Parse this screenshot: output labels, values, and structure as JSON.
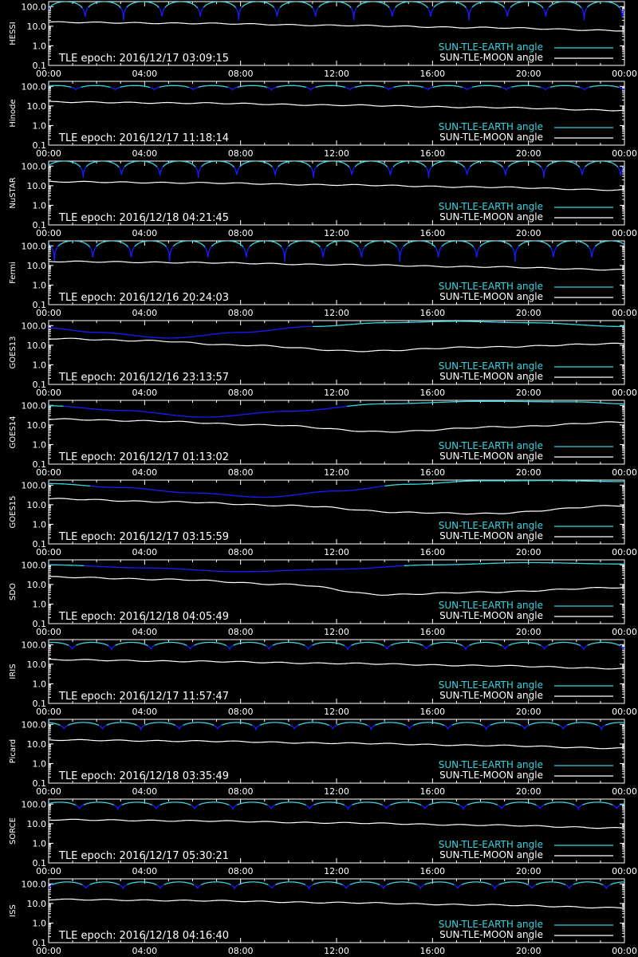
{
  "colors": {
    "background": "#000000",
    "frame": "#ffffff",
    "text": "#ffffff",
    "earth_low": "#1a1aff",
    "earth_high": "#33d6e0",
    "moon": "#ffffff"
  },
  "x_tick_labels": [
    "00:00",
    "04:00",
    "08:00",
    "12:00",
    "16:00",
    "20:00",
    "00:00"
  ],
  "y_tick_labels": [
    "100.0",
    "10.0",
    "1.0",
    "0.1"
  ],
  "legend": {
    "earth": "SUN-TLE-EARTH angle",
    "moon": "SUN-TLE-MOON angle"
  },
  "chart_data": [
    {
      "type": "line",
      "ylabel": "HESSI",
      "annotation": "TLE epoch: 2016/12/17 03:09:15",
      "x_range_hours": [
        0,
        24
      ],
      "ylim": [
        0.1,
        180
      ],
      "y_scale": "log",
      "grid": false,
      "legend_placement": "bottom-right",
      "series": [
        {
          "name": "SUN-TLE-EARTH angle",
          "kind": "orbit",
          "period_hours": 1.6,
          "min": 20,
          "max": 180,
          "phase": 0.05
        },
        {
          "name": "SUN-TLE-MOON angle",
          "kind": "trend",
          "x": [
            0,
            6,
            12,
            18,
            24
          ],
          "y": [
            16,
            14,
            11,
            8.5,
            6
          ]
        }
      ]
    },
    {
      "type": "line",
      "ylabel": "Hinode",
      "annotation": "TLE epoch: 2016/12/17 11:18:14",
      "x_range_hours": [
        0,
        24
      ],
      "ylim": [
        0.1,
        180
      ],
      "y_scale": "log",
      "grid": false,
      "legend_placement": "bottom-right",
      "series": [
        {
          "name": "SUN-TLE-EARTH angle",
          "kind": "orbit",
          "period_hours": 1.63,
          "min": 65,
          "max": 110,
          "phase": 0.3
        },
        {
          "name": "SUN-TLE-MOON angle",
          "kind": "trend",
          "x": [
            0,
            6,
            12,
            18,
            24
          ],
          "y": [
            16,
            14,
            11,
            8.5,
            6
          ]
        }
      ]
    },
    {
      "type": "line",
      "ylabel": "NuSTAR",
      "annotation": "TLE epoch: 2016/12/18 04:21:45",
      "x_range_hours": [
        0,
        24
      ],
      "ylim": [
        0.1,
        180
      ],
      "y_scale": "log",
      "grid": false,
      "legend_placement": "bottom-right",
      "series": [
        {
          "name": "SUN-TLE-EARTH angle",
          "kind": "orbit",
          "period_hours": 1.6,
          "min": 25,
          "max": 180,
          "phase": 0.1
        },
        {
          "name": "SUN-TLE-MOON angle",
          "kind": "trend",
          "x": [
            0,
            6,
            12,
            18,
            24
          ],
          "y": [
            16,
            14,
            11,
            8.5,
            6
          ]
        }
      ]
    },
    {
      "type": "line",
      "ylabel": "Fermi",
      "annotation": "TLE epoch: 2016/12/16 20:24:03",
      "x_range_hours": [
        0,
        24
      ],
      "ylim": [
        0.1,
        180
      ],
      "y_scale": "log",
      "grid": false,
      "legend_placement": "bottom-right",
      "series": [
        {
          "name": "SUN-TLE-EARTH angle",
          "kind": "orbit",
          "period_hours": 1.6,
          "min": 15,
          "max": 180,
          "phase": 0.85
        },
        {
          "name": "SUN-TLE-MOON angle",
          "kind": "trend",
          "x": [
            0,
            6,
            12,
            18,
            24
          ],
          "y": [
            16,
            14,
            11,
            8.5,
            6
          ]
        }
      ]
    },
    {
      "type": "line",
      "ylabel": "GOES13",
      "annotation": "TLE epoch: 2016/12/16 23:13:57",
      "x_range_hours": [
        0,
        24
      ],
      "ylim": [
        0.1,
        180
      ],
      "y_scale": "log",
      "grid": false,
      "legend_placement": "bottom-right",
      "series": [
        {
          "name": "SUN-TLE-EARTH angle",
          "kind": "geo",
          "x": [
            0,
            2,
            5,
            8,
            11,
            14,
            17,
            20,
            24
          ],
          "y": [
            75,
            45,
            23,
            45,
            90,
            140,
            165,
            140,
            90
          ]
        },
        {
          "name": "SUN-TLE-MOON angle",
          "kind": "trend",
          "x": [
            0,
            4,
            8,
            13,
            18,
            24
          ],
          "y": [
            22,
            17,
            10,
            5,
            8,
            12
          ]
        }
      ]
    },
    {
      "type": "line",
      "ylabel": "GOES14",
      "annotation": "TLE epoch: 2016/12/17 01:13:02",
      "x_range_hours": [
        0,
        24
      ],
      "ylim": [
        0.1,
        180
      ],
      "y_scale": "log",
      "grid": false,
      "legend_placement": "bottom-right",
      "series": [
        {
          "name": "SUN-TLE-EARTH angle",
          "kind": "geo",
          "x": [
            0,
            3,
            6.5,
            10,
            14,
            18,
            22,
            24
          ],
          "y": [
            95,
            55,
            25,
            50,
            120,
            160,
            150,
            120
          ]
        },
        {
          "name": "SUN-TLE-MOON angle",
          "kind": "trend",
          "x": [
            0,
            4,
            9,
            14,
            19,
            24
          ],
          "y": [
            20,
            16,
            10,
            4.5,
            8,
            14
          ]
        }
      ]
    },
    {
      "type": "line",
      "ylabel": "GOES15",
      "annotation": "TLE epoch: 2016/12/17 03:15:59",
      "x_range_hours": [
        0,
        24
      ],
      "ylim": [
        0.1,
        180
      ],
      "y_scale": "log",
      "grid": false,
      "legend_placement": "bottom-right",
      "series": [
        {
          "name": "SUN-TLE-EARTH angle",
          "kind": "geo",
          "x": [
            0,
            3,
            6,
            9,
            12,
            15,
            18,
            21,
            24
          ],
          "y": [
            120,
            75,
            40,
            24,
            50,
            110,
            165,
            170,
            150
          ]
        },
        {
          "name": "SUN-TLE-MOON angle",
          "kind": "trend",
          "x": [
            0,
            5,
            10,
            15,
            18,
            24
          ],
          "y": [
            20,
            14,
            9,
            4,
            3.5,
            9
          ]
        }
      ]
    },
    {
      "type": "line",
      "ylabel": "SDO",
      "annotation": "TLE epoch: 2016/12/18 04:05:49",
      "x_range_hours": [
        0,
        24
      ],
      "ylim": [
        0.1,
        180
      ],
      "y_scale": "log",
      "grid": false,
      "legend_placement": "bottom-right",
      "series": [
        {
          "name": "SUN-TLE-EARTH angle",
          "kind": "geo",
          "x": [
            0,
            4,
            8,
            12,
            16,
            20,
            24
          ],
          "y": [
            100,
            70,
            45,
            60,
            100,
            130,
            110
          ]
        },
        {
          "name": "SUN-TLE-MOON angle",
          "kind": "trend",
          "x": [
            0,
            5,
            10,
            14,
            18,
            24
          ],
          "y": [
            24,
            18,
            10,
            3,
            4,
            7
          ]
        }
      ]
    },
    {
      "type": "line",
      "ylabel": "IRIS",
      "annotation": "TLE epoch: 2016/12/17 11:57:47",
      "x_range_hours": [
        0,
        24
      ],
      "ylim": [
        0.1,
        180
      ],
      "y_scale": "log",
      "grid": false,
      "legend_placement": "bottom-right",
      "series": [
        {
          "name": "SUN-TLE-EARTH angle",
          "kind": "orbit",
          "period_hours": 1.64,
          "min": 55,
          "max": 130,
          "phase": 0.4
        },
        {
          "name": "SUN-TLE-MOON angle",
          "kind": "trend",
          "x": [
            0,
            6,
            12,
            18,
            24
          ],
          "y": [
            17,
            14,
            11,
            8.5,
            6
          ]
        }
      ]
    },
    {
      "type": "line",
      "ylabel": "Picard",
      "annotation": "TLE epoch: 2016/12/18 03:35:49",
      "x_range_hours": [
        0,
        24
      ],
      "ylim": [
        0.1,
        180
      ],
      "y_scale": "log",
      "grid": false,
      "legend_placement": "bottom-right",
      "series": [
        {
          "name": "SUN-TLE-EARTH angle",
          "kind": "orbit",
          "period_hours": 1.6,
          "min": 55,
          "max": 125,
          "phase": 0.6
        },
        {
          "name": "SUN-TLE-MOON angle",
          "kind": "trend",
          "x": [
            0,
            6,
            12,
            18,
            24
          ],
          "y": [
            16,
            14,
            11,
            8.5,
            6
          ]
        }
      ]
    },
    {
      "type": "line",
      "ylabel": "SORCE",
      "annotation": "TLE epoch: 2016/12/17 05:30:21",
      "x_range_hours": [
        0,
        24
      ],
      "ylim": [
        0.1,
        180
      ],
      "y_scale": "log",
      "grid": false,
      "legend_placement": "bottom-right",
      "series": [
        {
          "name": "SUN-TLE-EARTH angle",
          "kind": "orbit",
          "period_hours": 1.6,
          "min": 55,
          "max": 125,
          "phase": 0.2
        },
        {
          "name": "SUN-TLE-MOON angle",
          "kind": "trend",
          "x": [
            0,
            6,
            12,
            18,
            24
          ],
          "y": [
            16,
            14,
            11,
            8.5,
            6
          ]
        }
      ]
    },
    {
      "type": "line",
      "ylabel": "ISS",
      "annotation": "TLE epoch: 2016/12/18 04:16:40",
      "x_range_hours": [
        0,
        24
      ],
      "ylim": [
        0.1,
        180
      ],
      "y_scale": "log",
      "grid": false,
      "legend_placement": "bottom-right",
      "series": [
        {
          "name": "SUN-TLE-EARTH angle",
          "kind": "orbit",
          "period_hours": 1.55,
          "min": 55,
          "max": 125,
          "phase": 0.0
        },
        {
          "name": "SUN-TLE-MOON angle",
          "kind": "trend",
          "x": [
            0,
            6,
            12,
            18,
            24
          ],
          "y": [
            16,
            14,
            11,
            8.5,
            6
          ]
        }
      ]
    }
  ]
}
